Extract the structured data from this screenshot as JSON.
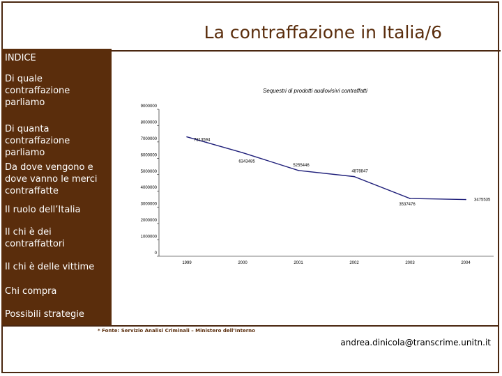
{
  "title": "La contraffazione in Italia/6",
  "sidebar": {
    "items": [
      {
        "label": "INDICE"
      },
      {
        "label": "Di quale contraffazione parliamo"
      },
      {
        "label": "Di quanta contraffazione parliamo"
      },
      {
        "label": "Da dove vengono e dove vanno le merci contraffatte"
      },
      {
        "label": "Il ruolo dell’Italia"
      },
      {
        "label": "Il chi è dei contraffattori"
      },
      {
        "label": "Il chi è delle vittime"
      },
      {
        "label": "Chi compra"
      },
      {
        "label": "Possibili strategie"
      }
    ]
  },
  "footer": {
    "note": "* Fonte: Servizio Analisi Criminali – Ministero dell’Interno",
    "email": "andrea.dinicola@transcrime.unitn.it"
  },
  "colors": {
    "brown": "#5a2d0c",
    "line": "#1f1f7a"
  },
  "chart_data": {
    "type": "line",
    "title": "Sequestri di prodotti audiovisivi contraffatti",
    "categories": [
      "1999",
      "2000",
      "2001",
      "2002",
      "2003",
      "2004"
    ],
    "values": [
      7313594,
      6343485,
      5255446,
      4878847,
      3537476,
      3475535
    ],
    "value_labels": [
      "7313594",
      "6343485",
      "5255446",
      "4878847",
      "3537476",
      "3475535"
    ],
    "ylim": [
      0,
      9000000
    ],
    "yticks": [
      "0",
      "1000000",
      "2000000",
      "3000000",
      "4000000",
      "5000000",
      "6000000",
      "7000000",
      "8000000",
      "9000000"
    ]
  }
}
